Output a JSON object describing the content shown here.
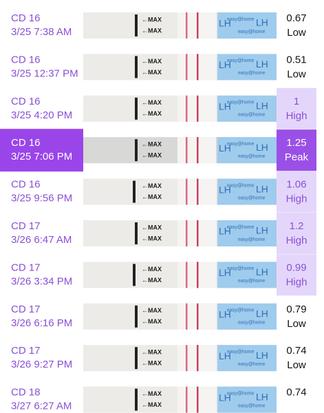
{
  "strip": {
    "max": "←MAX",
    "brand": "easy@home",
    "lh": "LH"
  },
  "rows": [
    {
      "cd": "CD 16",
      "time": "3/25 7:38 AM",
      "value": "0.67",
      "level": "Low",
      "cell_color": "#ffffff"
    },
    {
      "cd": "CD 16",
      "time": "3/25 12:37 PM",
      "value": "0.51",
      "level": "Low",
      "cell_color": "#ffffff"
    },
    {
      "cd": "CD 16",
      "time": "3/25 4:20 PM",
      "value": "1",
      "level": "High",
      "cell_color": "#e4d6fb"
    },
    {
      "cd": "CD 16",
      "time": "3/25 7:06 PM",
      "value": "1.25",
      "level": "Peak",
      "cell_color": "#9a50e6",
      "selected": true
    },
    {
      "cd": "CD 16",
      "time": "3/25 9:56 PM",
      "value": "1.06",
      "level": "High",
      "cell_color": "#e4d6fb"
    },
    {
      "cd": "CD 17",
      "time": "3/26 6:47 AM",
      "value": "1.2",
      "level": "High",
      "cell_color": "#e4d6fb"
    },
    {
      "cd": "CD 17",
      "time": "3/26 3:34 PM",
      "value": "0.99",
      "level": "High",
      "cell_color": "#e4d6fb"
    },
    {
      "cd": "CD 17",
      "time": "3/26 6:16 PM",
      "value": "0.79",
      "level": "Low",
      "cell_color": "#ffffff"
    },
    {
      "cd": "CD 17",
      "time": "3/26 9:27 PM",
      "value": "0.74",
      "level": "Low",
      "cell_color": "#ffffff"
    },
    {
      "cd": "CD 18",
      "time": "3/27 6:27 AM",
      "value": "0.74",
      "cell_color": "#ffffff"
    }
  ]
}
